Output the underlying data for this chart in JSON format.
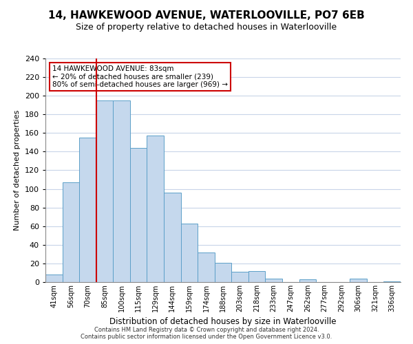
{
  "title": "14, HAWKEWOOD AVENUE, WATERLOOVILLE, PO7 6EB",
  "subtitle": "Size of property relative to detached houses in Waterlooville",
  "xlabel": "Distribution of detached houses by size in Waterlooville",
  "ylabel": "Number of detached properties",
  "bar_labels": [
    "41sqm",
    "56sqm",
    "70sqm",
    "85sqm",
    "100sqm",
    "115sqm",
    "129sqm",
    "144sqm",
    "159sqm",
    "174sqm",
    "188sqm",
    "203sqm",
    "218sqm",
    "233sqm",
    "247sqm",
    "262sqm",
    "277sqm",
    "292sqm",
    "306sqm",
    "321sqm",
    "336sqm"
  ],
  "bar_values": [
    8,
    107,
    155,
    195,
    195,
    144,
    157,
    96,
    63,
    32,
    21,
    11,
    12,
    4,
    0,
    3,
    0,
    0,
    4,
    0,
    1
  ],
  "bar_color": "#c5d8ed",
  "bar_edge_color": "#5b9fc8",
  "ylim": [
    0,
    240
  ],
  "yticks": [
    0,
    20,
    40,
    60,
    80,
    100,
    120,
    140,
    160,
    180,
    200,
    220,
    240
  ],
  "property_line_color": "#cc0000",
  "annotation_title": "14 HAWKEWOOD AVENUE: 83sqm",
  "annotation_line1": "← 20% of detached houses are smaller (239)",
  "annotation_line2": "80% of semi-detached houses are larger (969) →",
  "annotation_box_color": "#ffffff",
  "annotation_box_edge": "#cc0000",
  "footer1": "Contains HM Land Registry data © Crown copyright and database right 2024.",
  "footer2": "Contains public sector information licensed under the Open Government Licence v3.0.",
  "background_color": "#ffffff",
  "grid_color": "#c8d4e8",
  "title_fontsize": 11,
  "subtitle_fontsize": 9
}
